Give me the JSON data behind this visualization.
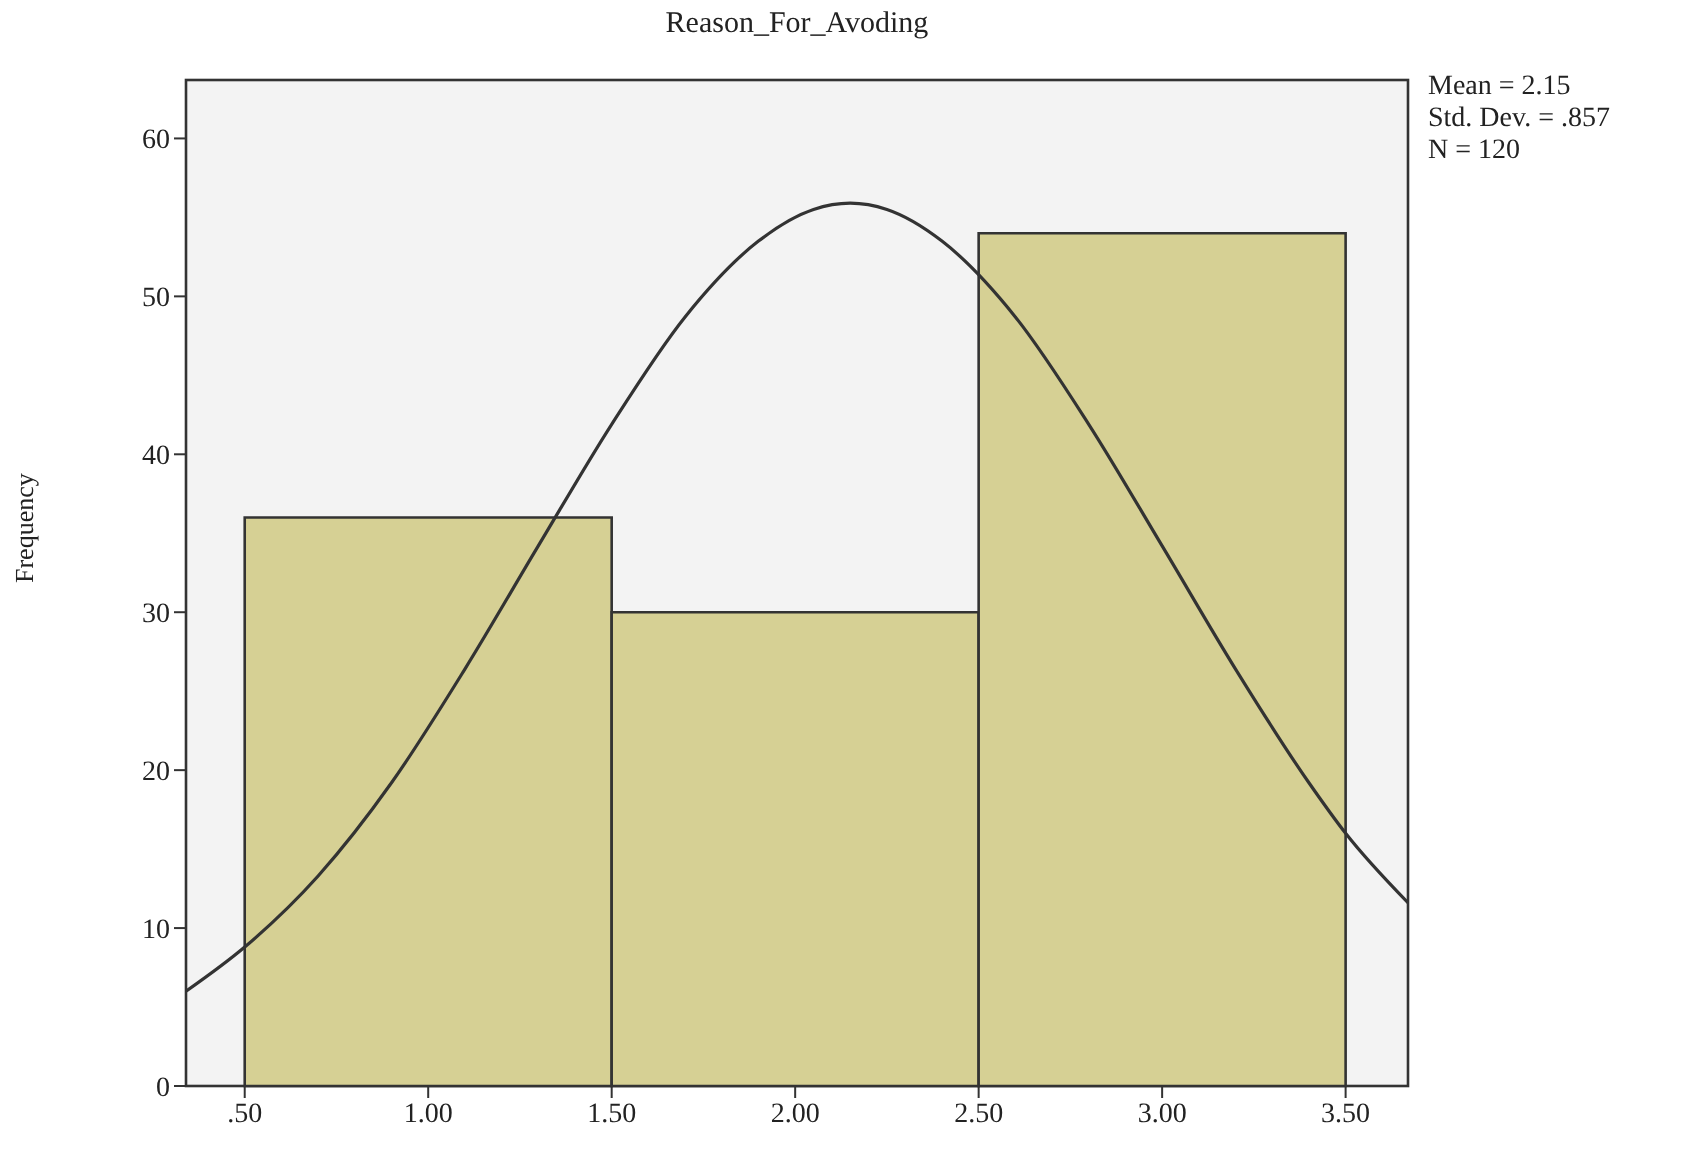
{
  "chart_data": {
    "type": "histogram",
    "title": "Reason_For_Avoding",
    "ylabel": "Frequency",
    "bins": [
      0.5,
      1.5,
      2.5,
      3.5
    ],
    "values": [
      36,
      30,
      54
    ],
    "color": "#d6d094",
    "series": [
      {
        "type": "line",
        "color": "#333333",
        "x": [
          0.34,
          0.5,
          0.7,
          0.9,
          1.1,
          1.3,
          1.5,
          1.7,
          1.9,
          2.05,
          2.15,
          2.25,
          2.4,
          2.6,
          2.8,
          3.0,
          3.2,
          3.4,
          3.5,
          3.67
        ],
        "values": [
          6,
          8.8,
          13.3,
          19.2,
          26.4,
          34.2,
          41.9,
          48.7,
          53.5,
          55.5,
          55.9,
          55.5,
          53.5,
          48.7,
          41.9,
          34.2,
          26.4,
          19.2,
          16,
          11.6
        ]
      }
    ],
    "xlim": [
      0.34,
      3.67
    ],
    "xticks": [
      {
        "value": 0.5,
        "label": ".50"
      },
      {
        "value": 1,
        "label": "1.00"
      },
      {
        "value": 1.5,
        "label": "1.50"
      },
      {
        "value": 2,
        "label": "2.00"
      },
      {
        "value": 2.5,
        "label": "2.50"
      },
      {
        "value": 3,
        "label": "3.00"
      },
      {
        "value": 3.5,
        "label": "3.50"
      }
    ],
    "ylim": [
      0,
      63.7
    ],
    "yticks": [
      0,
      10,
      20,
      30,
      40,
      50,
      60
    ],
    "annotations": [
      "Mean = 2.15",
      "Std. Dev. = .857",
      "N = 120"
    ]
  }
}
